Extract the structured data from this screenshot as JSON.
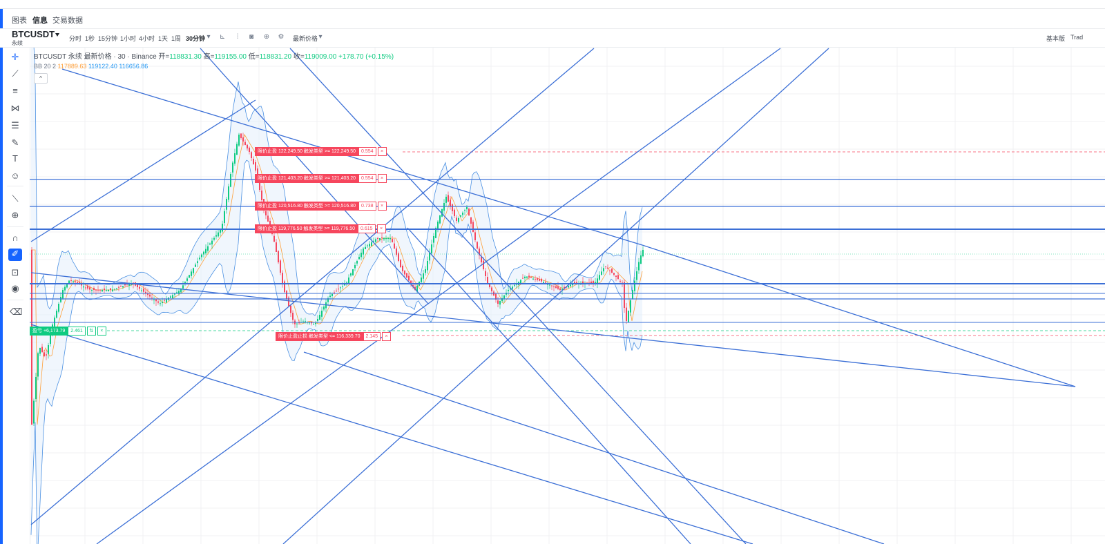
{
  "tabs": [
    {
      "label": "图表"
    },
    {
      "label": "信息"
    },
    {
      "label": "交易数据"
    }
  ],
  "symbol": {
    "name": "BTCUSDT",
    "sub": "永续"
  },
  "intervals": [
    "分时",
    "1秒",
    "15分钟",
    "1小时",
    "4小时",
    "1天",
    "1周",
    "30分钟"
  ],
  "price_type": "最新价格",
  "right_links": {
    "basic": "基本版",
    "trading": "Trad"
  },
  "legend": {
    "title": "BTCUSDT 永续 最新价格 · 30 · Binance",
    "open_label": "开=",
    "open": "118831.30",
    "high_label": "高=",
    "high": "119155.00",
    "low_label": "低=",
    "low": "118831.20",
    "close_label": "收=",
    "close": "119009.00",
    "change": "+178.70 (+0.15%)"
  },
  "bb": {
    "label": "BB 20 2",
    "basis": "117889.63",
    "upper": "119122.40",
    "lower": "116656.86"
  },
  "collapse_icon": "^",
  "orders": [
    {
      "label": "限价止盈 122,249.50 触发类型 >= 122,249.50",
      "qty": "0.554"
    },
    {
      "label": "限价止盈 121,403.20 触发类型 >= 121,403.20",
      "qty": "0.554"
    },
    {
      "label": "限价止盈 120,516.80 触发类型 >= 120,516.80",
      "qty": "0.738"
    },
    {
      "label": "限价止盈 119,776.50 触发类型 >= 119,776.50",
      "qty": "0.615"
    },
    {
      "label": "限价止盈止损 触发类型 <= 116,339.70",
      "qty": "2.145"
    }
  ],
  "position": {
    "label": "盈亏 +6,173.79",
    "qty": "2.461",
    "swap": "⇅",
    "close": "×"
  },
  "close_icon": "×",
  "colors": {
    "accent": "#1664ff",
    "up": "#0ecb81",
    "down": "#f6465d",
    "line": "#3b6fd6"
  }
}
